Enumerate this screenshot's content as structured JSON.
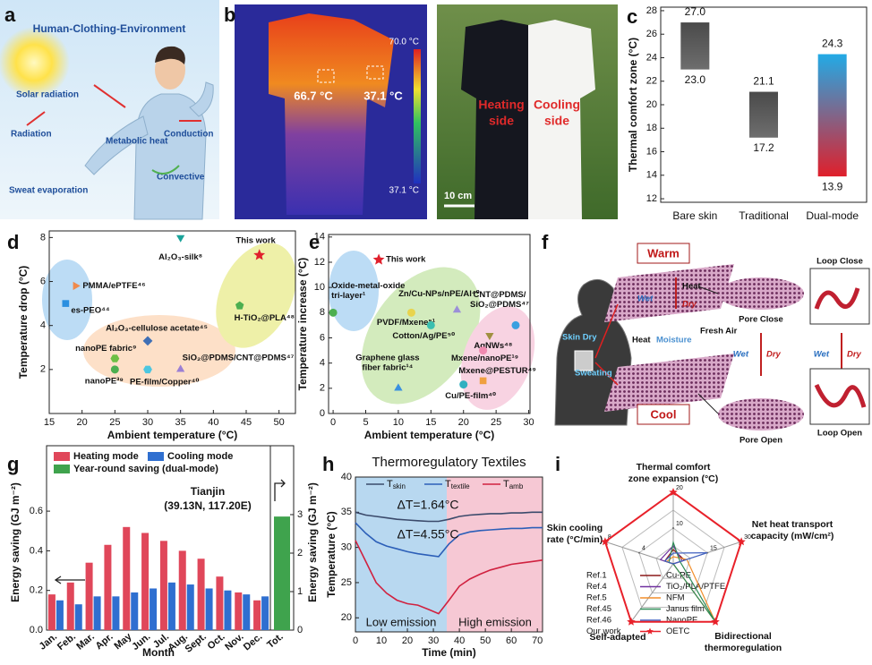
{
  "panel_a": {
    "panel": "a",
    "title": "Human-Clothing-Environment",
    "labels": [
      "Solar radiation",
      "Radiation",
      "Metabolic heat",
      "Conduction",
      "Convective",
      "Sweat evaporation"
    ]
  },
  "panel_b": {
    "panel": "b",
    "colorbar_max": "70.0 °C",
    "colorbar_min": "37.1 °C",
    "hot_spot": "66.7 °C",
    "cool_spot": "37.1 °C",
    "heating_side": [
      "Heating",
      "side"
    ],
    "cooling_side": [
      "Cooling",
      "side"
    ],
    "scale_bar": "10 cm"
  },
  "panel_f": {
    "panel": "f",
    "warm": "Warm",
    "cool": "Cool",
    "heat_top": "Heat",
    "dry_top": "Dry",
    "wet_top": "Wet",
    "heat_bottom": "Heat",
    "moisture": "Moisture",
    "fresh_air": "Fresh Air",
    "skin_dry": "Skin Dry",
    "sweating": "Sweating",
    "pore_close": "Pore Close",
    "pore_open": "Pore Open",
    "loop_close": "Loop Close",
    "loop_open": "Loop Open",
    "wet_mid": "Wet",
    "dry_mid": "Dry",
    "wet_right": "Wet",
    "dry_right": "Dry"
  },
  "chart_data": [
    {
      "panel": "c",
      "type": "floating_bar",
      "categories": [
        "Bare skin",
        "Traditional",
        "Dual-mode"
      ],
      "low": [
        23.0,
        17.2,
        13.9
      ],
      "high": [
        27.0,
        21.1,
        24.3
      ],
      "low_labels": [
        "23.0",
        "17.2",
        "13.9"
      ],
      "high_labels": [
        "27.0",
        "21.1",
        "24.3"
      ],
      "colors": [
        [
          "#4a4a4a",
          "#6e6e6e"
        ],
        [
          "#4a4a4a",
          "#6e6e6e"
        ],
        [
          "#22aae6",
          "#e01f2b"
        ]
      ],
      "ylabel": "Thermal comfort zone (°C)",
      "ylim": [
        11.7,
        28.3
      ],
      "yticks": [
        12,
        14,
        16,
        18,
        20,
        22,
        24,
        26,
        28
      ]
    },
    {
      "panel": "d",
      "type": "scatter",
      "xlabel": "Ambient temperature (°C)",
      "ylabel": "Temperature drop (°C)",
      "labels": [
        "Al₂O₃-silk⁸",
        "This work",
        "PMMA/ePTFE⁴⁶",
        "es-PEO⁴⁴",
        "H-TiO₂@PLA⁴⁸",
        "Al₂O₃-cellulose acetate⁴⁵",
        "nanoPE fabric⁹",
        "nanoPE³⁹",
        "SiO₂@PDMS/CNT@PDMS⁴⁷",
        "PE-film/Copper⁴⁰"
      ],
      "x": [
        35,
        47,
        19,
        17.5,
        44,
        30,
        25,
        25,
        35,
        30
      ],
      "values": [
        8,
        7.2,
        5.8,
        5,
        4.9,
        3.3,
        2.5,
        2,
        2,
        2
      ],
      "colors": [
        "#1aa39a",
        "#e0202c",
        "#f08a4b",
        "#2b8fe0",
        "#4caf50",
        "#3f6fb5",
        "#6cbf45",
        "#4caf50",
        "#9b7fd4",
        "#4cc6e0"
      ],
      "markers": [
        "triangle-down",
        "star",
        "triangle-right",
        "square",
        "pentagon",
        "diamond",
        "hexagon",
        "circle",
        "triangle-up",
        "hexagon"
      ],
      "xlim": [
        15,
        52.5
      ],
      "xticks": [
        15,
        20,
        25,
        30,
        35,
        40,
        45,
        50
      ],
      "ylim": [
        0,
        8.3
      ],
      "yticks": [
        2,
        4,
        6,
        8
      ]
    },
    {
      "panel": "e",
      "type": "scatter",
      "xlabel": "Ambient temperature (°C)",
      "ylabel": "Temperature increase (°C)",
      "labels": [
        "This work",
        [
          "Oxide-metal-oxide",
          "tri-layer¹"
        ],
        "Zn/Cu-NPs/nPE/Al⁴⁰",
        [
          "CNT@PDMS/",
          "SiO₂@PDMS⁴⁷"
        ],
        "PVDF/Mxene⁵¹",
        "Cotton/Ag/PE⁵⁰",
        "AgNWs⁴⁸",
        "Mxene/nanoPE¹⁹",
        "Mxene@PESTUR⁴⁹",
        [
          "Graphene glass",
          "fiber fabric¹⁴"
        ],
        "Cu/PE-film⁴⁰"
      ],
      "x": [
        7,
        0,
        19,
        28,
        12,
        15,
        24,
        23,
        23,
        10,
        20
      ],
      "values": [
        12.2,
        8,
        8.2,
        7,
        8,
        7,
        6.2,
        5,
        2.6,
        2,
        2.3
      ],
      "colors": [
        "#e0202c",
        "#4caf50",
        "#9b8fd8",
        "#3aa0e0",
        "#e8d44d",
        "#3bbfb0",
        "#a09040",
        "#f08ab0",
        "#f0a040",
        "#3a90e0",
        "#30b0c0"
      ],
      "markers": [
        "star",
        "circle",
        "triangle-up",
        "circle",
        "circle",
        "circle",
        "triangle-down",
        "circle",
        "square",
        "triangle-up",
        "circle"
      ],
      "xlim": [
        -0.7,
        30.2
      ],
      "xticks": [
        0,
        5,
        10,
        15,
        20,
        25,
        30
      ],
      "ylim": [
        0,
        14.2
      ],
      "yticks": [
        0,
        2,
        4,
        6,
        8,
        10,
        12,
        14
      ]
    },
    {
      "panel": "g",
      "type": "bar",
      "xlabel": "Month",
      "ylabel": "Energy saving (GJ m⁻²)",
      "y2label": "Energy saving (GJ m⁻²)",
      "annotation": [
        "Tianjin",
        "(39.13N, 117.20E)"
      ],
      "categories": [
        "Jan.",
        "Feb.",
        "Mar.",
        "Apr.",
        "May",
        "Jun.",
        "Jul.",
        "Aug.",
        "Sept.",
        "Oct.",
        "Nov.",
        "Dec.",
        "Tot."
      ],
      "series": [
        {
          "name": "Heating mode",
          "color": "#e0475a",
          "values": [
            0.18,
            0.24,
            0.34,
            0.43,
            0.52,
            0.49,
            0.45,
            0.4,
            0.36,
            0.27,
            0.19,
            0.15,
            null
          ]
        },
        {
          "name": "Cooling mode",
          "color": "#2f6fd0",
          "values": [
            0.15,
            0.13,
            0.17,
            0.17,
            0.19,
            0.21,
            0.24,
            0.23,
            0.21,
            0.2,
            0.18,
            0.17,
            null
          ]
        },
        {
          "name": "Year-round saving (dual-mode)",
          "color": "#3fa34d",
          "axis": "y2",
          "values": [
            null,
            null,
            null,
            null,
            null,
            null,
            null,
            null,
            null,
            null,
            null,
            null,
            2.95
          ]
        }
      ],
      "ylim": [
        0,
        0.93
      ],
      "yticks": [
        {
          "value": 0,
          "label": "0.0"
        },
        {
          "value": 0.2,
          "label": "0.2"
        },
        {
          "value": 0.4,
          "label": "0.4"
        },
        {
          "value": 0.6,
          "label": "0.6"
        }
      ],
      "y2lim": [
        0,
        4.79
      ],
      "y2ticks": [
        0,
        1,
        2,
        3
      ]
    },
    {
      "panel": "h",
      "type": "line",
      "title": "Thermoregulatory Textiles",
      "xlabel": "Time (min)",
      "ylabel": "Temperature (°C)",
      "annotations": [
        "ΔT=1.64°C",
        "ΔT=4.55°C",
        "Low emission",
        "High emission"
      ],
      "x": [
        0,
        4,
        8,
        12,
        16,
        20,
        24,
        28,
        32,
        36,
        40,
        44,
        48,
        52,
        56,
        60,
        64,
        68,
        72
      ],
      "series": [
        {
          "name": "Tskin",
          "color": "#3b4a6b",
          "values": [
            35,
            34.6,
            34.4,
            34.2,
            34.0,
            33.9,
            33.8,
            33.7,
            33.7,
            34.0,
            34.4,
            34.6,
            34.7,
            34.8,
            34.8,
            34.9,
            34.9,
            35,
            35
          ]
        },
        {
          "name": "Ttextile",
          "color": "#2c5fb8",
          "values": [
            33.5,
            32,
            30.8,
            30.2,
            29.8,
            29.4,
            29.1,
            28.9,
            28.7,
            30.5,
            31.8,
            32.2,
            32.4,
            32.5,
            32.6,
            32.7,
            32.7,
            32.8,
            32.8
          ]
        },
        {
          "name": "Tamb",
          "color": "#d0213f",
          "values": [
            31,
            28,
            25,
            23.5,
            22.5,
            22,
            21.8,
            21.2,
            20.6,
            22.5,
            24.5,
            25.5,
            26.2,
            26.8,
            27.2,
            27.6,
            27.8,
            28,
            28.2
          ]
        }
      ],
      "xlim": [
        0,
        72
      ],
      "xticks": [
        0,
        10,
        20,
        30,
        40,
        50,
        60,
        70
      ],
      "ylim": [
        18,
        40
      ],
      "yticks": [
        20,
        25,
        30,
        35,
        40
      ]
    },
    {
      "panel": "i",
      "type": "radar",
      "axes": [
        {
          "label": [
            "Thermal comfort",
            "zone expansion (°C)"
          ],
          "max": 20,
          "ticks": [
            10,
            20
          ]
        },
        {
          "label": [
            "Net heat transport",
            "capacity (mW/cm²)"
          ],
          "max": 30,
          "ticks": [
            15,
            30
          ]
        },
        {
          "label": [
            "Bidirectional",
            "thermoregulation"
          ],
          "max": 1,
          "ticks": []
        },
        {
          "label": [
            "Self-adapted"
          ],
          "max": 1,
          "ticks": []
        },
        {
          "label": [
            "Skin cooling",
            "rate (°C/min)"
          ],
          "max": 8,
          "ticks": [
            4,
            8
          ]
        }
      ],
      "series": [
        {
          "name": "Cu-PE",
          "ref": "Ref.1",
          "color": "#8b1a1a",
          "values": [
            4,
            5,
            0,
            0,
            1
          ]
        },
        {
          "name": "TiO₂/PLA/PTFE",
          "ref": "Ref.4",
          "color": "#7030a0",
          "values": [
            5,
            4,
            0,
            0,
            1.5
          ]
        },
        {
          "name": "NFM",
          "ref": "Ref.5",
          "color": "#f28e2b",
          "values": [
            2,
            6,
            1,
            0,
            0.8
          ]
        },
        {
          "name": "Janus film",
          "ref": "Ref.45",
          "color": "#2e8b57",
          "values": [
            6,
            3,
            1,
            0,
            0.5
          ]
        },
        {
          "name": "NanoPE",
          "ref": "Ref.46",
          "color": "#4060c0",
          "values": [
            3,
            15,
            0,
            0,
            1
          ]
        },
        {
          "name": "OETC",
          "ref": "Our work",
          "color": "#e8212a",
          "values": [
            20,
            30,
            1,
            1,
            8
          ]
        }
      ]
    }
  ]
}
